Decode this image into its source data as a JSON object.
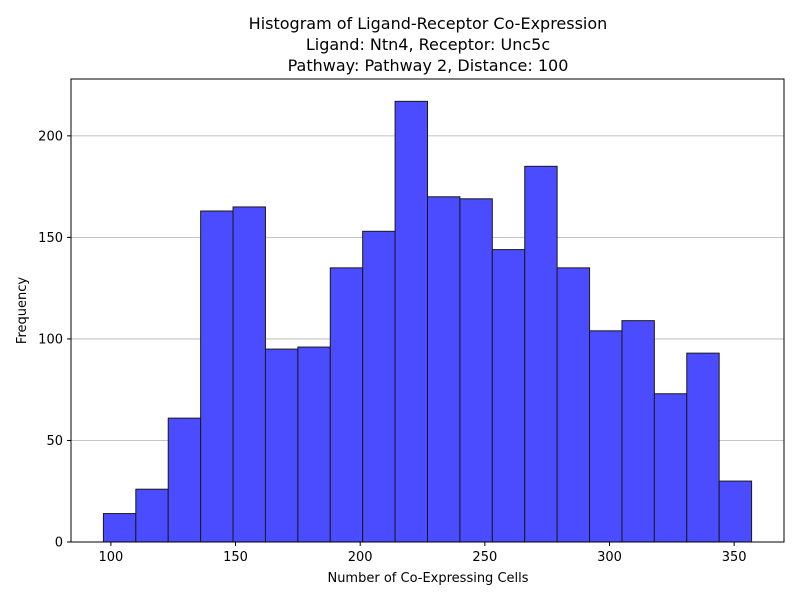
{
  "chart_data": {
    "type": "bar",
    "title_lines": [
      "Histogram of Ligand-Receptor Co-Expression",
      "Ligand: Ntn4, Receptor: Unc5c",
      "Pathway: Pathway 2, Distance: 100"
    ],
    "xlabel": "Number of Co-Expressing Cells",
    "ylabel": "Frequency",
    "bin_start": 97.0,
    "bin_width": 13.0,
    "values": [
      14,
      26,
      61,
      163,
      165,
      95,
      96,
      135,
      153,
      217,
      170,
      169,
      144,
      185,
      135,
      104,
      109,
      73,
      93,
      30
    ],
    "xlim": [
      84,
      370
    ],
    "ylim": [
      0,
      228
    ],
    "xticks": [
      100,
      150,
      200,
      250,
      300,
      350
    ],
    "yticks": [
      0,
      50,
      100,
      150,
      200
    ],
    "grid": "y",
    "bar_color": "#4b4bff",
    "bar_edge_color": "#1a1a1a"
  }
}
